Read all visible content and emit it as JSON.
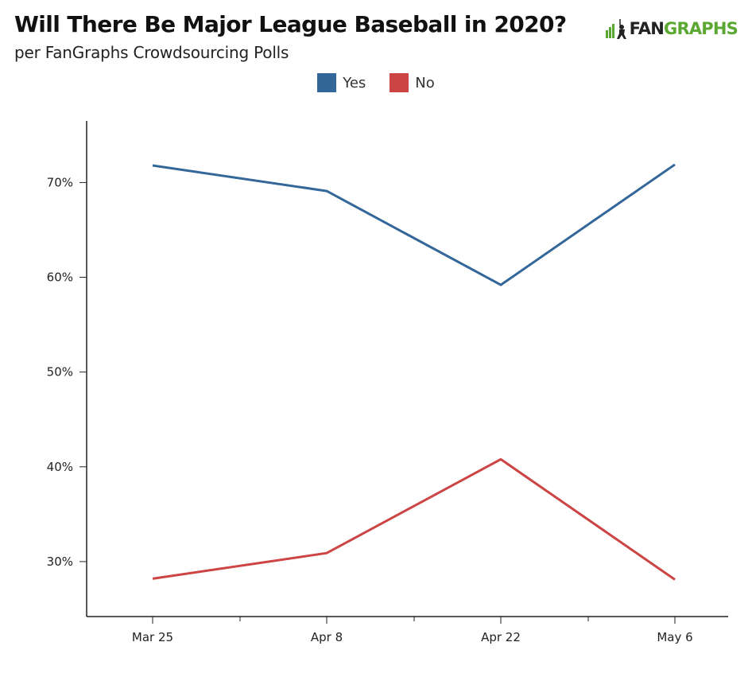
{
  "chart_data": {
    "type": "line",
    "title": "Will There Be Major League Baseball in 2020?",
    "subtitle": "per FanGraphs Crowdsourcing Polls",
    "categories": [
      "Mar 25",
      "Apr 8",
      "Apr 22",
      "May 6"
    ],
    "series": [
      {
        "name": "Yes",
        "color": "#336699",
        "values": [
          71.8,
          69.1,
          59.2,
          71.9
        ]
      },
      {
        "name": "No",
        "color": "#cc4444",
        "values": [
          28.2,
          30.9,
          40.8,
          28.1
        ]
      }
    ],
    "yticks": [
      "30%",
      "40%",
      "50%",
      "60%",
      "70%"
    ],
    "ytick_values": [
      30,
      40,
      50,
      60,
      70
    ],
    "ylim": [
      24.2,
      76.5
    ],
    "grid": false,
    "legend_position": "top-center"
  },
  "brand": {
    "logo_fan": "FAN",
    "logo_graphs": "GRAPHS",
    "logo_icon": "batter-icon",
    "accent": "#5aa832"
  }
}
